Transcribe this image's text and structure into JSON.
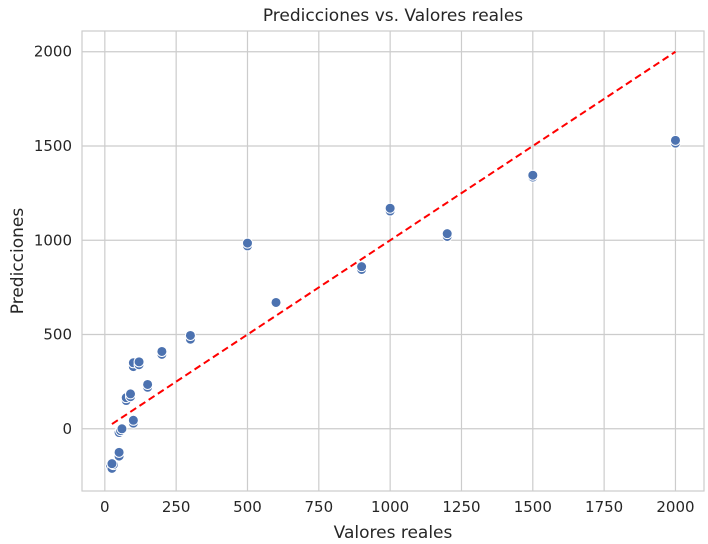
{
  "chart_data": {
    "type": "scatter",
    "title": "Predicciones vs. Valores reales",
    "xlabel": "Valores reales",
    "ylabel": "Predicciones",
    "xlim": [
      -80,
      2100
    ],
    "ylim": [
      -330,
      2110
    ],
    "xticks": [
      0,
      250,
      500,
      750,
      1000,
      1250,
      1500,
      1750,
      2000
    ],
    "yticks": [
      0,
      500,
      1000,
      1500,
      2000
    ],
    "grid": true,
    "points": [
      {
        "x": 20,
        "y": -200
      },
      {
        "x": 25,
        "y": -210
      },
      {
        "x": 30,
        "y": -190
      },
      {
        "x": 25,
        "y": -185
      },
      {
        "x": 50,
        "y": -130
      },
      {
        "x": 50,
        "y": -145
      },
      {
        "x": 50,
        "y": -125
      },
      {
        "x": 50,
        "y": -20
      },
      {
        "x": 55,
        "y": -10
      },
      {
        "x": 60,
        "y": 0
      },
      {
        "x": 100,
        "y": 30
      },
      {
        "x": 100,
        "y": 45
      },
      {
        "x": 75,
        "y": 150
      },
      {
        "x": 75,
        "y": 165
      },
      {
        "x": 90,
        "y": 170
      },
      {
        "x": 90,
        "y": 185
      },
      {
        "x": 100,
        "y": 330
      },
      {
        "x": 100,
        "y": 350
      },
      {
        "x": 120,
        "y": 340
      },
      {
        "x": 120,
        "y": 355
      },
      {
        "x": 150,
        "y": 220
      },
      {
        "x": 150,
        "y": 235
      },
      {
        "x": 200,
        "y": 395
      },
      {
        "x": 200,
        "y": 410
      },
      {
        "x": 300,
        "y": 475
      },
      {
        "x": 300,
        "y": 495
      },
      {
        "x": 500,
        "y": 970
      },
      {
        "x": 500,
        "y": 985
      },
      {
        "x": 600,
        "y": 670
      },
      {
        "x": 900,
        "y": 845
      },
      {
        "x": 900,
        "y": 860
      },
      {
        "x": 1000,
        "y": 1155
      },
      {
        "x": 1000,
        "y": 1170
      },
      {
        "x": 1200,
        "y": 1020
      },
      {
        "x": 1200,
        "y": 1035
      },
      {
        "x": 1500,
        "y": 1335
      },
      {
        "x": 1500,
        "y": 1345
      },
      {
        "x": 2000,
        "y": 1515
      },
      {
        "x": 2000,
        "y": 1530
      }
    ],
    "reference_line": {
      "x": [
        25,
        2000
      ],
      "y": [
        25,
        2000
      ],
      "style": "dashed",
      "color": "#ff0000"
    },
    "point_color": "#4c72b0"
  }
}
